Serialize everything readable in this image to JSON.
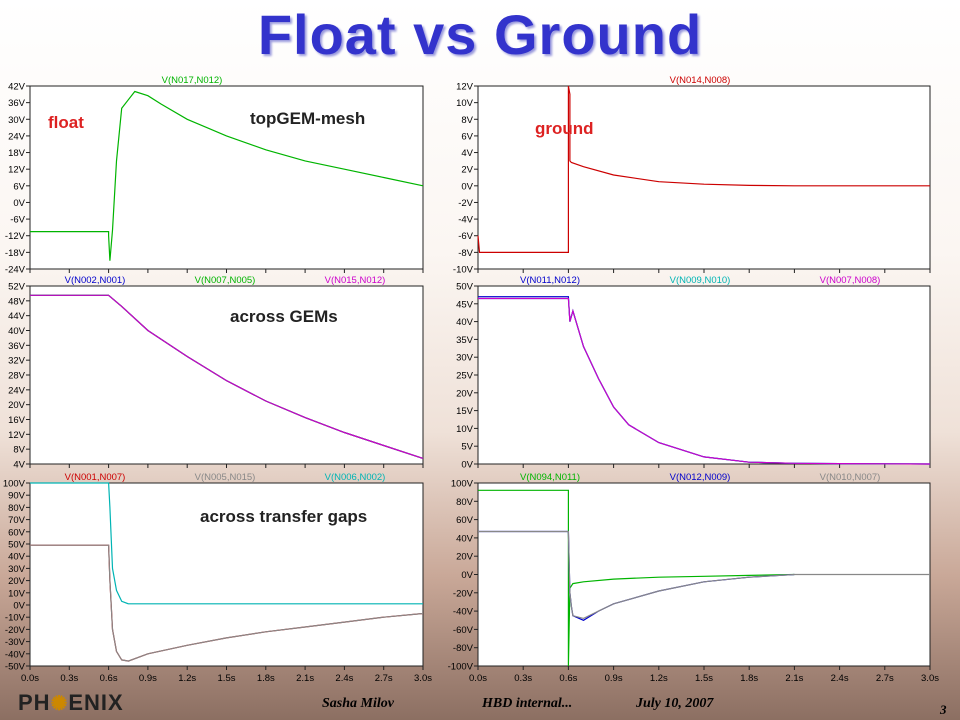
{
  "title": "Float vs Ground",
  "footer": {
    "logo_a": "PH",
    "logo_b": "ENIX",
    "author": "Sasha Milov",
    "subject": "HBD internal...",
    "date": "July 10, 2007",
    "page": "3"
  },
  "colors": {
    "green": "#00b400",
    "red": "#cc0000",
    "teal": "#00b4b4",
    "blue": "#0000cc",
    "magenta": "#cc00cc",
    "gray": "#888888"
  },
  "x_ticks": [
    "0.0s",
    "0.3s",
    "0.6s",
    "0.9s",
    "1.2s",
    "1.5s",
    "1.8s",
    "2.1s",
    "2.4s",
    "2.7s",
    "3.0s"
  ],
  "chart_data": [
    {
      "type": "line",
      "position": "top-left",
      "ylim": [
        -24,
        42
      ],
      "yticks": [
        "42V",
        "36V",
        "30V",
        "24V",
        "18V",
        "12V",
        "6V",
        "0V",
        "-6V",
        "-12V",
        "-18V",
        "-24V"
      ],
      "annotations": [
        "float",
        "topGEM-mesh"
      ],
      "series": [
        {
          "name": "V(N017,N012)",
          "color": "green",
          "x": [
            0,
            0.6,
            0.6,
            0.61,
            0.63,
            0.66,
            0.7,
            0.8,
            0.9,
            1.0,
            1.2,
            1.5,
            1.8,
            2.1,
            2.4,
            2.7,
            3.0
          ],
          "y": [
            -10.5,
            -10.5,
            -12,
            -21,
            -10,
            15,
            34,
            40,
            38.5,
            35.5,
            30,
            24,
            19,
            15,
            12,
            9,
            6
          ]
        }
      ]
    },
    {
      "type": "line",
      "position": "top-right",
      "ylim": [
        -10,
        12
      ],
      "yticks": [
        "12V",
        "10V",
        "8V",
        "6V",
        "4V",
        "2V",
        "0V",
        "-2V",
        "-4V",
        "-6V",
        "-8V",
        "-10V"
      ],
      "annotations": [
        "ground"
      ],
      "series": [
        {
          "name": "V(N014,N008)",
          "color": "red",
          "x": [
            0,
            0.01,
            0.02,
            0.6,
            0.6,
            0.61,
            0.61,
            0.62,
            0.7,
            0.9,
            1.2,
            1.5,
            1.8,
            2.1,
            2.4,
            2.7,
            3.0
          ],
          "y": [
            -6,
            -8,
            -8,
            -8,
            12,
            11,
            3,
            2.8,
            2.3,
            1.3,
            0.5,
            0.2,
            0.05,
            0,
            0,
            0,
            0
          ]
        }
      ]
    },
    {
      "type": "line",
      "position": "middle-left",
      "ylim": [
        4,
        52
      ],
      "yticks": [
        "52V",
        "48V",
        "44V",
        "40V",
        "36V",
        "32V",
        "28V",
        "24V",
        "20V",
        "16V",
        "12V",
        "8V",
        "4V"
      ],
      "annotations": [
        "across GEMs"
      ],
      "series": [
        {
          "name": "V(N002,N001)",
          "color": "blue",
          "x": [
            0,
            0.6,
            0.7,
            0.9,
            1.2,
            1.5,
            1.8,
            2.1,
            2.4,
            2.7,
            3.0
          ],
          "y": [
            49.5,
            49.5,
            46.5,
            40,
            33,
            26.5,
            21,
            16.5,
            12.5,
            9,
            5.5
          ]
        },
        {
          "name": "V(N007,N005)",
          "color": "green",
          "x": [
            0,
            0.6,
            0.7,
            0.9,
            1.2,
            1.5,
            1.8,
            2.1,
            2.4,
            2.7,
            3.0
          ],
          "y": [
            49.5,
            49.5,
            46.5,
            40,
            33,
            26.5,
            21,
            16.5,
            12.5,
            9,
            5.5
          ]
        },
        {
          "name": "V(N015,N012)",
          "color": "magenta",
          "x": [
            0,
            0.6,
            0.7,
            0.9,
            1.2,
            1.5,
            1.8,
            2.1,
            2.4,
            2.7,
            3.0
          ],
          "y": [
            49.5,
            49.5,
            46.5,
            40,
            33,
            26.5,
            21,
            16.5,
            12.5,
            9,
            5.5
          ]
        }
      ]
    },
    {
      "type": "line",
      "position": "middle-right",
      "ylim": [
        0,
        50
      ],
      "yticks": [
        "50V",
        "45V",
        "40V",
        "35V",
        "30V",
        "25V",
        "20V",
        "15V",
        "10V",
        "5V",
        "0V"
      ],
      "series": [
        {
          "name": "V(N011,N012)",
          "color": "blue",
          "x": [
            0,
            0.6,
            0.61,
            0.63,
            0.7,
            0.8,
            0.9,
            1.0,
            1.2,
            1.5,
            1.8,
            2.1,
            2.4,
            3.0
          ],
          "y": [
            47,
            47,
            40,
            43,
            33,
            24,
            16,
            11,
            6,
            2,
            0.5,
            0.2,
            0.1,
            0
          ]
        },
        {
          "name": "V(N009,N010)",
          "color": "teal",
          "x": [
            0,
            0.6,
            0.61,
            0.63,
            0.7,
            0.8,
            0.9,
            1.0,
            1.2,
            1.5,
            1.8,
            2.1,
            2.4,
            3.0
          ],
          "y": [
            46.5,
            46.5,
            40,
            43,
            33,
            24,
            16,
            11,
            6,
            2,
            0.5,
            0.2,
            0.1,
            0
          ]
        },
        {
          "name": "V(N007,N008)",
          "color": "magenta",
          "x": [
            0,
            0.6,
            0.61,
            0.63,
            0.7,
            0.8,
            0.9,
            1.0,
            1.2,
            1.5,
            1.8,
            2.1,
            2.4,
            3.0
          ],
          "y": [
            46.5,
            46.5,
            40,
            43,
            33,
            24,
            16,
            11,
            6,
            2,
            0.5,
            0.2,
            0.1,
            0
          ]
        }
      ]
    },
    {
      "type": "line",
      "position": "bottom-left",
      "ylim": [
        -50,
        100
      ],
      "yticks": [
        "100V",
        "90V",
        "80V",
        "70V",
        "60V",
        "50V",
        "40V",
        "30V",
        "20V",
        "10V",
        "0V",
        "-10V",
        "-20V",
        "-30V",
        "-40V",
        "-50V"
      ],
      "annotations": [
        "across transfer gaps"
      ],
      "series": [
        {
          "name": "V(N001,N007)",
          "color": "red",
          "x": [
            0,
            0.6,
            0.61,
            0.63,
            0.66,
            0.7,
            0.75,
            0.9,
            1.2,
            1.5,
            1.8,
            2.1,
            2.4,
            2.7,
            3.0
          ],
          "y": [
            49,
            49,
            20,
            -20,
            -38,
            -45,
            -46,
            -40,
            -33,
            -27,
            -22,
            -18,
            -14,
            -10,
            -7
          ]
        },
        {
          "name": "V(N005,N015)",
          "color": "gray",
          "x": [
            0,
            0.6,
            0.61,
            0.63,
            0.66,
            0.7,
            0.75,
            0.9,
            1.2,
            1.5,
            1.8,
            2.1,
            2.4,
            2.7,
            3.0
          ],
          "y": [
            49,
            49,
            20,
            -20,
            -38,
            -45,
            -46,
            -40,
            -33,
            -27,
            -22,
            -18,
            -14,
            -10,
            -7
          ]
        },
        {
          "name": "V(N006,N002)",
          "color": "teal",
          "x": [
            0,
            0.58,
            0.6,
            0.61,
            0.63,
            0.66,
            0.7,
            0.75,
            0.8,
            1.0,
            3.0
          ],
          "y": [
            100,
            100,
            100,
            80,
            30,
            12,
            3,
            1,
            1,
            1,
            1
          ]
        }
      ]
    },
    {
      "type": "line",
      "position": "bottom-right",
      "ylim": [
        -100,
        100
      ],
      "yticks": [
        "100V",
        "80V",
        "60V",
        "40V",
        "20V",
        "0V",
        "-20V",
        "-40V",
        "-60V",
        "-80V",
        "-100V"
      ],
      "series": [
        {
          "name": "V(N094,N011)",
          "color": "green",
          "x": [
            0,
            0.58,
            0.6,
            0.6,
            0.61,
            0.63,
            0.7,
            0.9,
            1.2,
            1.5,
            1.8,
            2.1
          ],
          "y": [
            92,
            92,
            92,
            -100,
            -15,
            -10,
            -8,
            -5,
            -3,
            -2,
            -1,
            0
          ]
        },
        {
          "name": "V(N012,N009)",
          "color": "blue",
          "x": [
            0,
            0.6,
            0.61,
            0.62,
            0.63,
            0.7,
            0.8,
            0.9,
            1.2,
            1.5,
            1.8,
            2.1
          ],
          "y": [
            47,
            47,
            -20,
            -35,
            -45,
            -50,
            -40,
            -32,
            -18,
            -8,
            -3,
            0
          ]
        },
        {
          "name": "V(N010,N007)",
          "color": "gray",
          "x": [
            0,
            0.6,
            0.61,
            0.62,
            0.63,
            0.7,
            0.8,
            0.9,
            1.2,
            1.5,
            1.8,
            2.1,
            2.4,
            3.0
          ],
          "y": [
            47,
            47,
            -20,
            -35,
            -45,
            -48,
            -40,
            -32,
            -18,
            -8,
            -3,
            0,
            0,
            0
          ]
        }
      ]
    }
  ]
}
